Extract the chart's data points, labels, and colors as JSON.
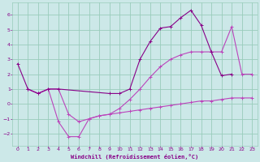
{
  "xlabel": "Windchill (Refroidissement éolien,°C)",
  "bg_color": "#cce8e8",
  "grid_color": "#99ccbb",
  "dark_purple": "#880088",
  "light_purple": "#bb44bb",
  "xlim": [
    -0.5,
    23.5
  ],
  "ylim": [
    -2.8,
    6.8
  ],
  "xticks": [
    0,
    1,
    2,
    3,
    4,
    5,
    6,
    7,
    8,
    9,
    10,
    11,
    12,
    13,
    14,
    15,
    16,
    17,
    18,
    19,
    20,
    21,
    22,
    23
  ],
  "yticks": [
    -2,
    -1,
    0,
    1,
    2,
    3,
    4,
    5,
    6
  ],
  "line1_x": [
    0,
    1,
    2,
    3,
    4,
    9,
    10,
    11,
    12,
    13,
    14,
    15,
    16,
    17,
    18,
    19,
    20,
    21
  ],
  "line1_y": [
    2.7,
    1.0,
    0.7,
    1.0,
    1.0,
    0.7,
    0.7,
    1.0,
    3.0,
    4.2,
    5.1,
    5.2,
    5.8,
    6.3,
    5.3,
    3.5,
    1.9,
    2.0
  ],
  "line2_x": [
    1,
    2,
    3,
    4,
    5,
    6,
    7,
    8,
    9,
    10,
    11,
    12,
    13,
    14,
    15,
    16,
    17,
    18,
    19,
    20,
    21,
    22,
    23
  ],
  "line2_y": [
    1.0,
    0.7,
    1.0,
    1.0,
    -0.7,
    -1.2,
    -1.0,
    -0.8,
    -0.7,
    -0.3,
    0.3,
    1.0,
    1.8,
    2.5,
    3.0,
    3.3,
    3.5,
    3.5,
    3.5,
    3.5,
    5.2,
    2.0,
    2.0
  ],
  "line3_x": [
    1,
    2,
    3,
    4,
    5,
    6,
    7,
    8,
    9,
    10,
    11,
    12,
    13,
    14,
    15,
    16,
    17,
    18,
    19,
    20,
    21,
    22,
    23
  ],
  "line3_y": [
    1.0,
    0.7,
    1.0,
    -1.2,
    -2.2,
    -2.2,
    -1.0,
    -0.8,
    -0.7,
    -0.6,
    -0.5,
    -0.4,
    -0.3,
    -0.2,
    -0.1,
    0.0,
    0.1,
    0.2,
    0.2,
    0.3,
    0.4,
    0.4,
    0.4
  ]
}
